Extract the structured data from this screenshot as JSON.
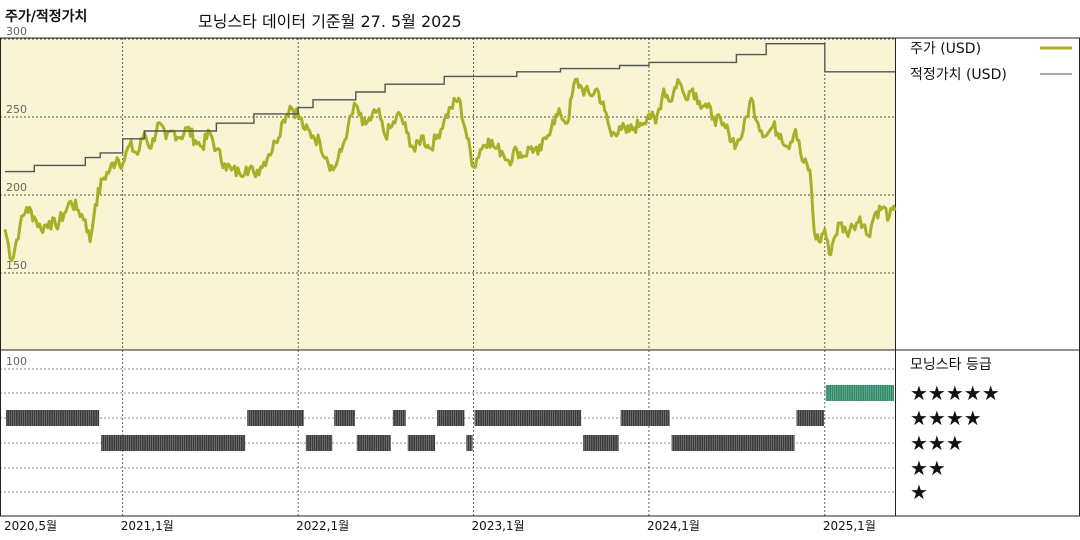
{
  "header": {
    "title": "주가/적정가치",
    "subtitle": "모닝스타 데이터 기준월 27. 5월 2025"
  },
  "colors": {
    "price": "#a8b02a",
    "fair_value": "#555555",
    "panel_bg": "#f8f4d4",
    "rating_bar": "#3a3a3a",
    "rating_bar_current": "#2e8a68",
    "grid": "#222222"
  },
  "chart_data": [
    {
      "type": "line",
      "title": "주가/적정가치",
      "x_start": "2020-05",
      "x_end": "2025-05",
      "x_tick_labels": [
        "2020,5월",
        "2021,1월",
        "2022,1월",
        "2023,1월",
        "2024,1월",
        "2025,1월"
      ],
      "y_ticks": [
        150,
        200,
        250,
        300
      ],
      "ylim": [
        100,
        310
      ],
      "grid": true,
      "legend_position": "top-right",
      "series": [
        {
          "name": "주가 (USD)",
          "color": "#a8b02a",
          "points": [
            [
              "2020-05-01",
              178
            ],
            [
              "2020-05-15",
              158
            ],
            [
              "2020-06-01",
              180
            ],
            [
              "2020-06-15",
              192
            ],
            [
              "2020-07-01",
              186
            ],
            [
              "2020-07-15",
              178
            ],
            [
              "2020-08-01",
              183
            ],
            [
              "2020-08-15",
              180
            ],
            [
              "2020-09-01",
              188
            ],
            [
              "2020-09-15",
              196
            ],
            [
              "2020-10-01",
              190
            ],
            [
              "2020-10-15",
              184
            ],
            [
              "2020-10-25",
              170
            ],
            [
              "2020-11-05",
              194
            ],
            [
              "2020-11-20",
              210
            ],
            [
              "2020-12-05",
              216
            ],
            [
              "2020-12-20",
              224
            ],
            [
              "2021-01-01",
              220
            ],
            [
              "2021-01-15",
              232
            ],
            [
              "2021-02-01",
              226
            ],
            [
              "2021-02-15",
              240
            ],
            [
              "2021-03-01",
              230
            ],
            [
              "2021-03-15",
              246
            ],
            [
              "2021-04-01",
              236
            ],
            [
              "2021-04-15",
              241
            ],
            [
              "2021-05-01",
              237
            ],
            [
              "2021-05-15",
              243
            ],
            [
              "2021-06-01",
              235
            ],
            [
              "2021-06-15",
              231
            ],
            [
              "2021-07-01",
              240
            ],
            [
              "2021-07-15",
              229
            ],
            [
              "2021-08-01",
              220
            ],
            [
              "2021-08-15",
              216
            ],
            [
              "2021-09-01",
              214
            ],
            [
              "2021-09-15",
              218
            ],
            [
              "2021-10-01",
              214
            ],
            [
              "2021-10-15",
              218
            ],
            [
              "2021-11-01",
              226
            ],
            [
              "2021-11-15",
              234
            ],
            [
              "2021-12-01",
              248
            ],
            [
              "2021-12-15",
              257
            ],
            [
              "2022-01-01",
              252
            ],
            [
              "2022-01-15",
              242
            ],
            [
              "2022-02-01",
              238
            ],
            [
              "2022-02-15",
              234
            ],
            [
              "2022-03-01",
              224
            ],
            [
              "2022-03-15",
              216
            ],
            [
              "2022-04-01",
              228
            ],
            [
              "2022-04-15",
              244
            ],
            [
              "2022-05-01",
              258
            ],
            [
              "2022-05-15",
              245
            ],
            [
              "2022-06-01",
              248
            ],
            [
              "2022-06-15",
              254
            ],
            [
              "2022-07-01",
              238
            ],
            [
              "2022-07-15",
              244
            ],
            [
              "2022-08-01",
              252
            ],
            [
              "2022-08-15",
              240
            ],
            [
              "2022-09-01",
              228
            ],
            [
              "2022-09-15",
              238
            ],
            [
              "2022-10-01",
              230
            ],
            [
              "2022-10-15",
              236
            ],
            [
              "2022-11-01",
              248
            ],
            [
              "2022-11-15",
              256
            ],
            [
              "2022-12-01",
              262
            ],
            [
              "2022-12-15",
              242
            ],
            [
              "2023-01-01",
              218
            ],
            [
              "2023-01-15",
              229
            ],
            [
              "2023-02-01",
              236
            ],
            [
              "2023-02-15",
              230
            ],
            [
              "2023-03-01",
              228
            ],
            [
              "2023-03-15",
              222
            ],
            [
              "2023-04-01",
              229
            ],
            [
              "2023-04-15",
              225
            ],
            [
              "2023-05-01",
              231
            ],
            [
              "2023-05-15",
              226
            ],
            [
              "2023-06-01",
              236
            ],
            [
              "2023-06-15",
              248
            ],
            [
              "2023-07-01",
              252
            ],
            [
              "2023-07-15",
              246
            ],
            [
              "2023-08-01",
              274
            ],
            [
              "2023-08-15",
              268
            ],
            [
              "2023-09-01",
              264
            ],
            [
              "2023-09-15",
              268
            ],
            [
              "2023-10-01",
              254
            ],
            [
              "2023-10-15",
              238
            ],
            [
              "2023-11-01",
              244
            ],
            [
              "2023-11-15",
              240
            ],
            [
              "2023-12-01",
              243
            ],
            [
              "2023-12-15",
              246
            ],
            [
              "2024-01-01",
              252
            ],
            [
              "2024-01-15",
              246
            ],
            [
              "2024-02-01",
              268
            ],
            [
              "2024-02-15",
              260
            ],
            [
              "2024-03-01",
              274
            ],
            [
              "2024-03-15",
              264
            ],
            [
              "2024-04-01",
              268
            ],
            [
              "2024-04-15",
              260
            ],
            [
              "2024-05-01",
              256
            ],
            [
              "2024-05-15",
              250
            ],
            [
              "2024-06-01",
              245
            ],
            [
              "2024-06-15",
              240
            ],
            [
              "2024-07-01",
              232
            ],
            [
              "2024-07-15",
              241
            ],
            [
              "2024-08-01",
              262
            ],
            [
              "2024-08-15",
              246
            ],
            [
              "2024-09-01",
              238
            ],
            [
              "2024-09-15",
              244
            ],
            [
              "2024-10-01",
              239
            ],
            [
              "2024-10-15",
              231
            ],
            [
              "2024-11-01",
              242
            ],
            [
              "2024-11-15",
              222
            ],
            [
              "2024-12-01",
              216
            ],
            [
              "2024-12-10",
              176
            ],
            [
              "2024-12-20",
              170
            ],
            [
              "2025-01-01",
              178
            ],
            [
              "2025-01-10",
              162
            ],
            [
              "2025-01-20",
              172
            ],
            [
              "2025-02-01",
              182
            ],
            [
              "2025-02-15",
              176
            ],
            [
              "2025-03-01",
              180
            ],
            [
              "2025-03-15",
              186
            ],
            [
              "2025-04-01",
              174
            ],
            [
              "2025-04-15",
              188
            ],
            [
              "2025-05-01",
              192
            ],
            [
              "2025-05-15",
              186
            ],
            [
              "2025-05-27",
              190
            ]
          ]
        },
        {
          "name": "적정가치 (USD)",
          "color": "#555555",
          "step": true,
          "points": [
            [
              "2020-05-01",
              215
            ],
            [
              "2020-07-01",
              219
            ],
            [
              "2020-10-15",
              224
            ],
            [
              "2020-11-15",
              227
            ],
            [
              "2021-01-01",
              236
            ],
            [
              "2021-02-15",
              241
            ],
            [
              "2021-07-15",
              246
            ],
            [
              "2021-10-01",
              252
            ],
            [
              "2022-01-01",
              256
            ],
            [
              "2022-02-01",
              261
            ],
            [
              "2022-05-01",
              266
            ],
            [
              "2022-07-01",
              271
            ],
            [
              "2022-11-01",
              276
            ],
            [
              "2023-01-01",
              276
            ],
            [
              "2023-04-01",
              279
            ],
            [
              "2023-07-01",
              281
            ],
            [
              "2023-11-01",
              283
            ],
            [
              "2024-01-01",
              285
            ],
            [
              "2024-07-01",
              290
            ],
            [
              "2024-09-01",
              297
            ],
            [
              "2024-11-01",
              297
            ],
            [
              "2025-01-01",
              279
            ],
            [
              "2025-05-27",
              279
            ]
          ]
        }
      ]
    },
    {
      "type": "bar",
      "title": "모닝스타 등급",
      "label": "100",
      "rating_levels": [
        "★★★★★",
        "★★★★",
        "★★★",
        "★★",
        "★"
      ],
      "rating_periods": [
        {
          "start": "2020-05-01",
          "end": "2020-11-15",
          "stars": 4
        },
        {
          "start": "2020-11-15",
          "end": "2021-09-15",
          "stars": 3
        },
        {
          "start": "2021-09-15",
          "end": "2022-01-15",
          "stars": 4
        },
        {
          "start": "2022-01-15",
          "end": "2022-03-15",
          "stars": 3
        },
        {
          "start": "2022-03-15",
          "end": "2022-05-01",
          "stars": 4
        },
        {
          "start": "2022-05-01",
          "end": "2022-07-15",
          "stars": 3
        },
        {
          "start": "2022-07-15",
          "end": "2022-08-15",
          "stars": 4
        },
        {
          "start": "2022-08-15",
          "end": "2022-10-15",
          "stars": 3
        },
        {
          "start": "2022-10-15",
          "end": "2022-12-15",
          "stars": 4
        },
        {
          "start": "2022-12-15",
          "end": "2023-01-01",
          "stars": 3
        },
        {
          "start": "2023-01-01",
          "end": "2023-08-15",
          "stars": 4
        },
        {
          "start": "2023-08-15",
          "end": "2023-11-01",
          "stars": 3
        },
        {
          "start": "2023-11-01",
          "end": "2024-02-15",
          "stars": 4
        },
        {
          "start": "2024-02-15",
          "end": "2024-11-01",
          "stars": 3
        },
        {
          "start": "2024-11-01",
          "end": "2025-01-01",
          "stars": 4
        },
        {
          "start": "2025-01-01",
          "end": "2025-05-27",
          "stars": 5
        }
      ]
    }
  ]
}
